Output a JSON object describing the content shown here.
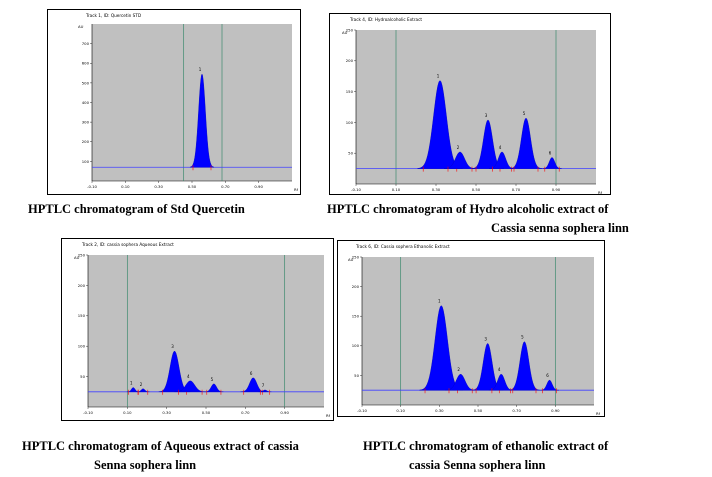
{
  "colors": {
    "plot_bg": "#c0c0c0",
    "peak_fill": "#0000ff",
    "baseline": "#4040ff",
    "marker": "#ff0000",
    "front_line": "#3c8a6e"
  },
  "chart_data": [
    {
      "type": "area",
      "header": "Track 1, ID: Quercetin STD",
      "y_unit": "AU",
      "x_unit": "Rf",
      "ylim": [
        0,
        800
      ],
      "xlim": [
        -0.1,
        1.1
      ],
      "yticks": [
        "100",
        "200",
        "300",
        "400",
        "500",
        "600",
        "700"
      ],
      "xticks": [
        "-0.10",
        "0.10",
        "0.30",
        "0.50",
        "0.70",
        "0.90"
      ],
      "baseline": 70,
      "peaks": [
        {
          "label": "1",
          "rf": 0.56,
          "height": 545,
          "width": 0.045
        }
      ],
      "caption": [
        "HPTLC chromatogram of Std Quercetin"
      ]
    },
    {
      "type": "area",
      "header": "Track 4, ID: Hydroalcoholic Extract",
      "y_unit": "AU",
      "x_unit": "Rf",
      "ylim": [
        0,
        250
      ],
      "xlim": [
        -0.1,
        1.1
      ],
      "yticks": [
        "50",
        "100",
        "150",
        "200",
        "250"
      ],
      "xticks": [
        "-0.10",
        "0.10",
        "0.30",
        "0.50",
        "0.70",
        "0.90"
      ],
      "baseline": 25,
      "peaks": [
        {
          "label": "1",
          "rf": 0.32,
          "height": 168,
          "width": 0.07
        },
        {
          "label": "2",
          "rf": 0.42,
          "height": 52,
          "width": 0.05
        },
        {
          "label": "3",
          "rf": 0.56,
          "height": 104,
          "width": 0.05
        },
        {
          "label": "4",
          "rf": 0.63,
          "height": 52,
          "width": 0.04
        },
        {
          "label": "5",
          "rf": 0.75,
          "height": 107,
          "width": 0.05
        },
        {
          "label": "6",
          "rf": 0.88,
          "height": 43,
          "width": 0.03
        }
      ],
      "caption": [
        "HPTLC chromatogram of Hydro alcoholic extract  of",
        "Cassia senna sophera linn"
      ]
    },
    {
      "type": "area",
      "header": "Track 2, ID: cassia sophera Aqueous Extract",
      "y_unit": "AU",
      "x_unit": "Rf",
      "ylim": [
        0,
        250
      ],
      "xlim": [
        -0.1,
        1.1
      ],
      "yticks": [
        "50",
        "100",
        "150",
        "200",
        "250"
      ],
      "xticks": [
        "-0.10",
        "0.10",
        "0.30",
        "0.50",
        "0.70",
        "0.90"
      ],
      "baseline": 25,
      "peaks": [
        {
          "label": "1",
          "rf": 0.13,
          "height": 32,
          "width": 0.02
        },
        {
          "label": "2",
          "rf": 0.18,
          "height": 30,
          "width": 0.02
        },
        {
          "label": "3",
          "rf": 0.34,
          "height": 92,
          "width": 0.05
        },
        {
          "label": "4",
          "rf": 0.42,
          "height": 43,
          "width": 0.05
        },
        {
          "label": "5",
          "rf": 0.54,
          "height": 38,
          "width": 0.03
        },
        {
          "label": "6",
          "rf": 0.74,
          "height": 48,
          "width": 0.04
        },
        {
          "label": "7",
          "rf": 0.8,
          "height": 28,
          "width": 0.02
        }
      ],
      "caption": [
        "HPTLC chromatogram of Aqueous extract of cassia",
        "Senna sophera linn"
      ]
    },
    {
      "type": "area",
      "header": "Track 6, ID: Cassia sophera Ethanolic Extract",
      "y_unit": "AU",
      "x_unit": "Rf",
      "ylim": [
        0,
        250
      ],
      "xlim": [
        -0.1,
        1.1
      ],
      "yticks": [
        "50",
        "100",
        "150",
        "200",
        "250"
      ],
      "xticks": [
        "-0.10",
        "0.10",
        "0.30",
        "0.50",
        "0.70",
        "0.90"
      ],
      "baseline": 25,
      "peaks": [
        {
          "label": "1",
          "rf": 0.31,
          "height": 168,
          "width": 0.07
        },
        {
          "label": "2",
          "rf": 0.41,
          "height": 52,
          "width": 0.05
        },
        {
          "label": "3",
          "rf": 0.55,
          "height": 104,
          "width": 0.05
        },
        {
          "label": "4",
          "rf": 0.62,
          "height": 52,
          "width": 0.04
        },
        {
          "label": "5",
          "rf": 0.74,
          "height": 107,
          "width": 0.05
        },
        {
          "label": "6",
          "rf": 0.87,
          "height": 42,
          "width": 0.03
        }
      ],
      "caption": [
        "HPTLC chromatogram of ethanolic extract of",
        "cassia Senna sophera linn"
      ]
    }
  ]
}
